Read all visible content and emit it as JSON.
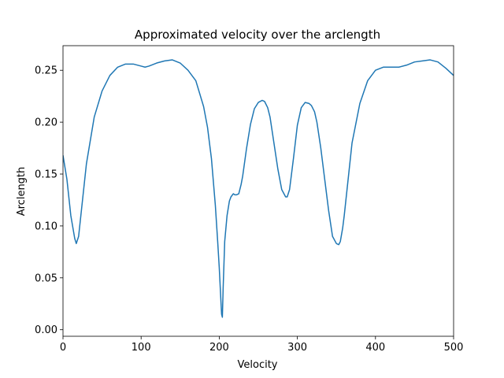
{
  "chart_data": {
    "type": "line",
    "title": "Approximated velocity over the arclength",
    "xlabel": "Velocity",
    "ylabel": "Arclength",
    "xlim": [
      0,
      500
    ],
    "ylim": [
      -0.0063,
      0.2737
    ],
    "xticks": [
      0,
      100,
      200,
      300,
      400,
      500
    ],
    "xtick_labels": [
      "0",
      "100",
      "200",
      "300",
      "400",
      "500"
    ],
    "yticks": [
      0.0,
      0.05,
      0.1,
      0.15,
      0.2,
      0.25
    ],
    "ytick_labels": [
      "0.00",
      "0.05",
      "0.10",
      "0.15",
      "0.20",
      "0.25"
    ],
    "grid": false,
    "series": [
      {
        "color": "#1f77b4",
        "x": [
          0,
          5,
          10,
          15,
          17,
          20,
          25,
          30,
          40,
          50,
          60,
          70,
          80,
          85,
          90,
          100,
          105,
          110,
          120,
          130,
          140,
          150,
          160,
          170,
          180,
          185,
          190,
          195,
          198,
          200,
          202,
          203,
          204,
          205,
          207,
          210,
          213,
          215,
          218,
          220,
          222,
          225,
          228,
          230,
          235,
          240,
          245,
          250,
          255,
          258,
          262,
          265,
          270,
          275,
          280,
          285,
          287,
          290,
          295,
          300,
          305,
          310,
          315,
          318,
          322,
          325,
          330,
          335,
          340,
          345,
          350,
          353,
          355,
          358,
          360,
          365,
          370,
          380,
          390,
          400,
          410,
          420,
          430,
          440,
          450,
          460,
          470,
          480,
          490,
          500
        ],
        "y": [
          0.168,
          0.145,
          0.11,
          0.088,
          0.083,
          0.09,
          0.125,
          0.16,
          0.205,
          0.23,
          0.245,
          0.253,
          0.256,
          0.256,
          0.256,
          0.254,
          0.253,
          0.254,
          0.257,
          0.259,
          0.26,
          0.257,
          0.25,
          0.24,
          0.215,
          0.195,
          0.165,
          0.12,
          0.085,
          0.06,
          0.03,
          0.015,
          0.012,
          0.04,
          0.085,
          0.11,
          0.124,
          0.128,
          0.131,
          0.13,
          0.13,
          0.131,
          0.14,
          0.148,
          0.175,
          0.198,
          0.213,
          0.219,
          0.221,
          0.22,
          0.214,
          0.205,
          0.18,
          0.155,
          0.135,
          0.128,
          0.128,
          0.135,
          0.165,
          0.197,
          0.214,
          0.219,
          0.218,
          0.216,
          0.21,
          0.2,
          0.175,
          0.145,
          0.115,
          0.09,
          0.083,
          0.082,
          0.085,
          0.098,
          0.11,
          0.145,
          0.18,
          0.218,
          0.24,
          0.25,
          0.253,
          0.253,
          0.253,
          0.255,
          0.258,
          0.259,
          0.26,
          0.258,
          0.252,
          0.245
        ]
      }
    ]
  }
}
